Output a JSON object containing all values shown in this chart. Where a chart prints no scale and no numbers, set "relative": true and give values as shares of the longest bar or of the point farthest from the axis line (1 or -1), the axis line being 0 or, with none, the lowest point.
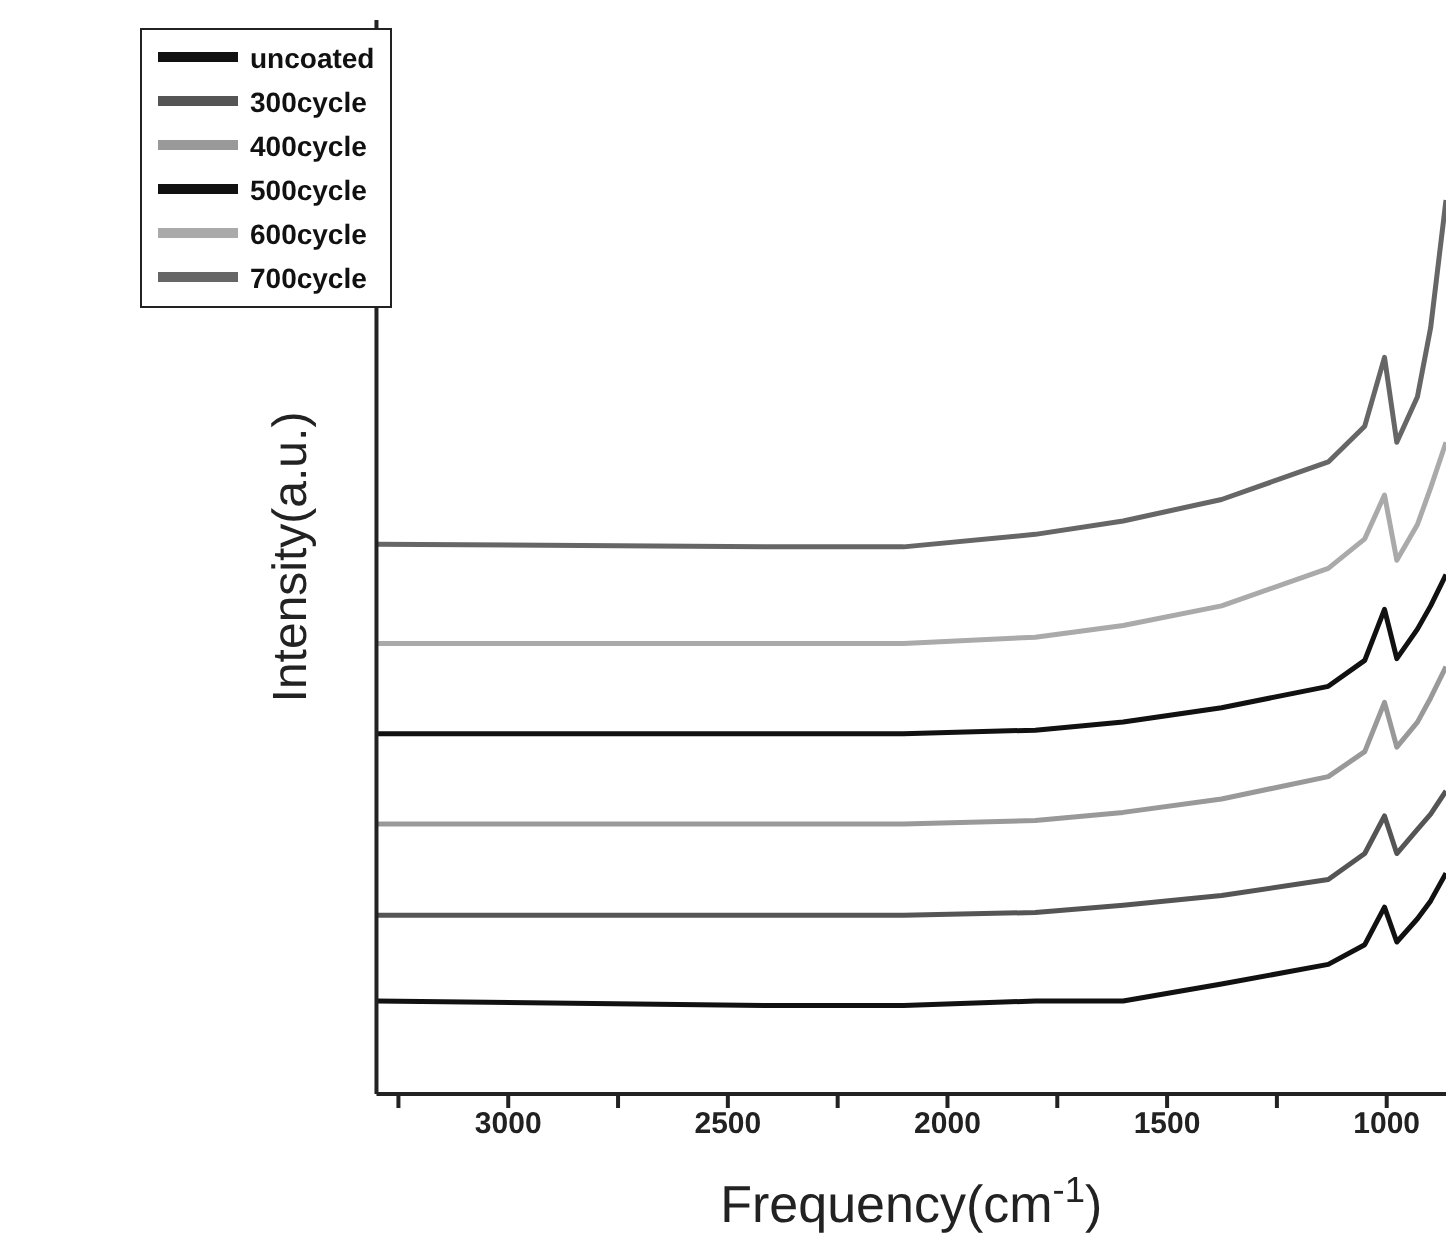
{
  "chart_data": {
    "type": "line",
    "relative": true,
    "xlabel": "Frequency(cm$^{-1}$)",
    "ylabel": "Intensity(a.u.)",
    "x": [
      3300,
      2400,
      2100,
      1800,
      1600,
      1376,
      1133,
      1050,
      1005,
      977,
      930,
      900,
      865
    ],
    "xlim": [
      3300,
      865
    ],
    "xticks": [
      {
        "value": 3250,
        "label": null
      },
      3000,
      {
        "value": 2750,
        "label": null
      },
      2500,
      {
        "value": 2250,
        "label": null
      },
      2000,
      {
        "value": 1750,
        "label": null
      },
      1500,
      {
        "value": 1250,
        "label": null
      },
      1000
    ],
    "legend": "top left",
    "grid": false,
    "marker": "none",
    "line_style": "solid",
    "series": [
      {
        "name": "uncoated",
        "color": "#111111",
        "values": [
          0.104,
          0.099,
          0.099,
          0.104,
          0.104,
          0.123,
          0.145,
          0.167,
          0.209,
          0.17,
          0.196,
          0.216,
          0.247
        ]
      },
      {
        "name": "300cycle",
        "color": "#555555",
        "values": [
          0.2,
          0.2,
          0.2,
          0.203,
          0.211,
          0.222,
          0.24,
          0.269,
          0.311,
          0.269,
          0.296,
          0.313,
          0.339
        ]
      },
      {
        "name": "400cycle",
        "color": "#999999",
        "values": [
          0.302,
          0.302,
          0.302,
          0.306,
          0.315,
          0.33,
          0.355,
          0.383,
          0.438,
          0.388,
          0.416,
          0.443,
          0.478
        ]
      },
      {
        "name": "500cycle",
        "color": "#111111",
        "values": [
          0.403,
          0.403,
          0.403,
          0.407,
          0.416,
          0.432,
          0.456,
          0.485,
          0.542,
          0.487,
          0.52,
          0.546,
          0.581
        ]
      },
      {
        "name": "600cycle",
        "color": "#aaaaaa",
        "values": [
          0.504,
          0.504,
          0.504,
          0.511,
          0.524,
          0.546,
          0.588,
          0.621,
          0.67,
          0.597,
          0.637,
          0.678,
          0.729
        ]
      },
      {
        "name": "700cycle",
        "color": "#666666",
        "values": [
          0.615,
          0.612,
          0.612,
          0.626,
          0.641,
          0.665,
          0.707,
          0.747,
          0.824,
          0.729,
          0.78,
          0.857,
          1.0
        ]
      }
    ]
  }
}
